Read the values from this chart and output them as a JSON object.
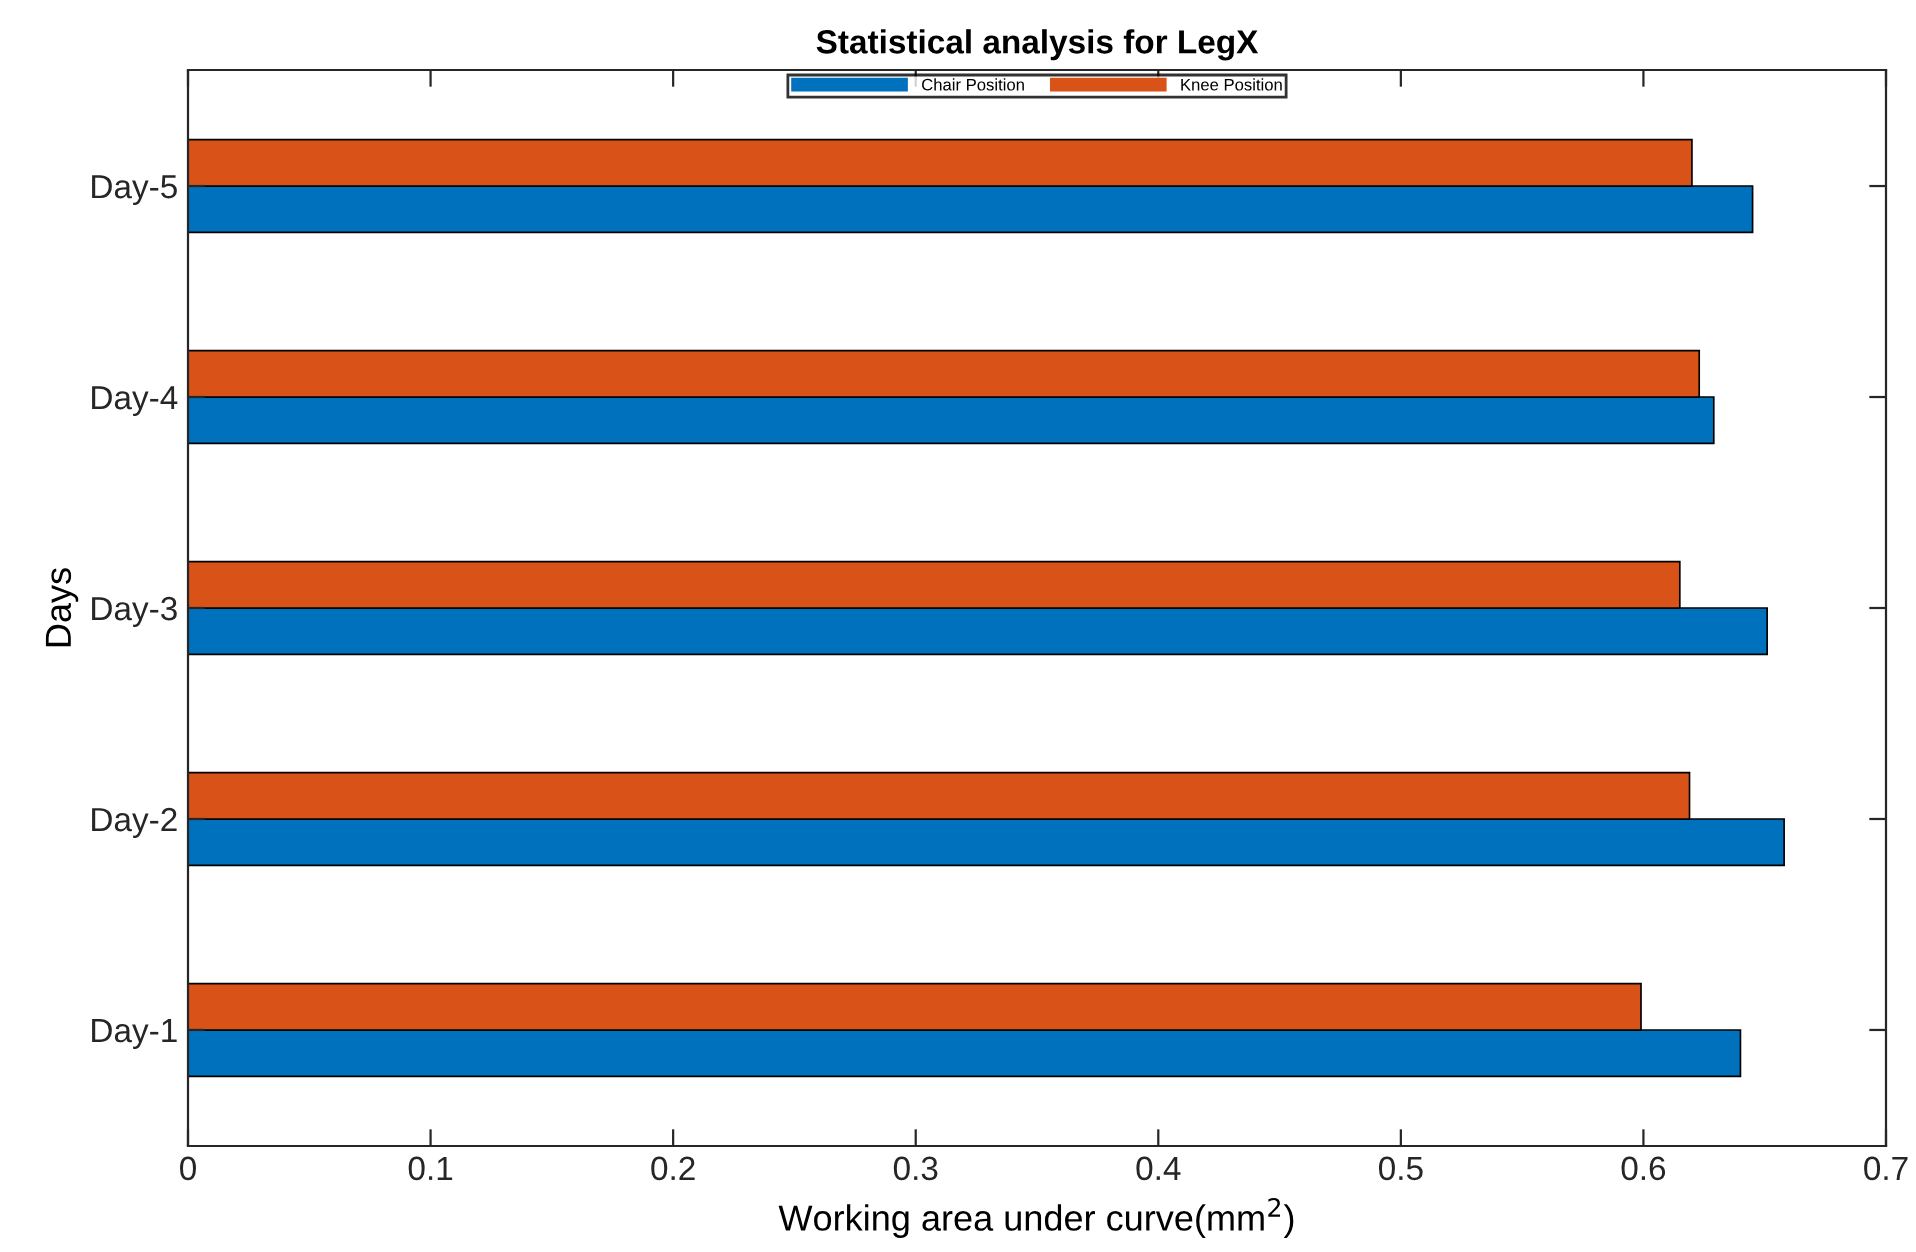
{
  "chart_data": {
    "type": "bar",
    "orientation": "horizontal",
    "title": "Statistical analysis for LegX",
    "xlabel": "Working area under curve(mm$^{2}$)",
    "ylabel": "Days",
    "categories": [
      "Day-5",
      "Day-4",
      "Day-3",
      "Day-2",
      "Day-1"
    ],
    "series": [
      {
        "name": "Chair Position",
        "color": "#0072bd",
        "values": [
          0.645,
          0.629,
          0.651,
          0.658,
          0.64
        ]
      },
      {
        "name": "Knee Position",
        "color": "#d95319",
        "values": [
          0.62,
          0.623,
          0.615,
          0.619,
          0.599
        ]
      }
    ],
    "xlim": [
      0,
      0.7
    ],
    "xticks": [
      0,
      0.1,
      0.2,
      0.3,
      0.4,
      0.5,
      0.6,
      0.7
    ],
    "grid": false,
    "legend": "top"
  }
}
